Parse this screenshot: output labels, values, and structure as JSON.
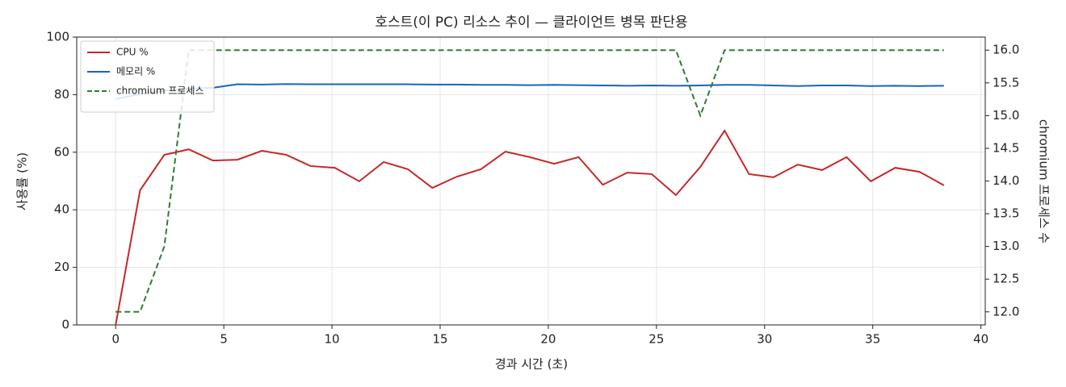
{
  "chart_data": {
    "type": "line",
    "title": "호스트(이 PC) 리소스 추이 — 클라이언트 병목 판단용",
    "xlabel": "경과 시간 (초)",
    "ylabel": "사용률 (%)",
    "y2label": "chromium 프로세스 수",
    "x": [
      0,
      1.13,
      2.25,
      3.38,
      4.5,
      5.63,
      6.76,
      7.88,
      9.01,
      10.13,
      11.26,
      12.39,
      13.51,
      14.64,
      15.77,
      16.89,
      18.02,
      19.14,
      20.27,
      21.4,
      22.52,
      23.65,
      24.78,
      25.9,
      27.03,
      28.15,
      29.28,
      30.41,
      31.53,
      32.66,
      33.79,
      34.91,
      36.04,
      37.16,
      38.29
    ],
    "series": [
      {
        "name": "CPU %",
        "color": "#c62828",
        "dashed": false,
        "values": [
          0,
          46.8,
          59.1,
          61,
          57.1,
          57.4,
          60.5,
          59.1,
          55.2,
          54.6,
          49.9,
          56.6,
          54.1,
          47.6,
          51.5,
          54.1,
          60.2,
          58.3,
          56,
          58.3,
          48.7,
          52.9,
          52.4,
          45.1,
          54.9,
          67.5,
          52.4,
          51.3,
          55.7,
          53.8,
          58.3,
          49.9,
          54.6,
          53.2,
          48.5
        ]
      },
      {
        "name": "메모리 %",
        "color": "#1565c0",
        "dashed": false,
        "values": [
          78.5,
          80.2,
          81.3,
          82.1,
          82.4,
          83.6,
          83.5,
          83.7,
          83.6,
          83.6,
          83.6,
          83.6,
          83.6,
          83.5,
          83.5,
          83.4,
          83.4,
          83.3,
          83.4,
          83.3,
          83.2,
          83.1,
          83.2,
          83.1,
          83.2,
          83.4,
          83.4,
          83.2,
          83.0,
          83.2,
          83.2,
          83.0,
          83.1,
          83.0,
          83.1
        ]
      },
      {
        "name": "chromium 프로세스",
        "color": "#2e7d32",
        "dashed": true,
        "axis": "y2",
        "values": [
          12,
          12,
          13,
          16,
          16,
          16,
          16,
          16,
          16,
          16,
          16,
          16,
          16,
          16,
          16,
          16,
          16,
          16,
          16,
          16,
          16,
          16,
          16,
          16,
          15,
          16,
          16,
          16,
          16,
          16,
          16,
          16,
          16,
          16,
          16
        ]
      }
    ],
    "xlim": [
      -1.8,
      40.2
    ],
    "xticks": [
      0,
      5,
      10,
      15,
      20,
      25,
      30,
      35,
      40
    ],
    "ylim": [
      0,
      100
    ],
    "yticks": [
      0,
      20,
      40,
      60,
      80,
      100
    ],
    "y2lim": [
      11.8,
      16.2
    ],
    "y2ticks": [
      {
        "value": 12,
        "label": "12.0"
      },
      12.5,
      {
        "value": 13,
        "label": "13.0"
      },
      13.5,
      {
        "value": 14,
        "label": "14.0"
      },
      14.5,
      {
        "value": 15,
        "label": "15.0"
      },
      15.5,
      {
        "value": 16,
        "label": "16.0"
      }
    ],
    "grid": true,
    "legend": "upper left"
  }
}
